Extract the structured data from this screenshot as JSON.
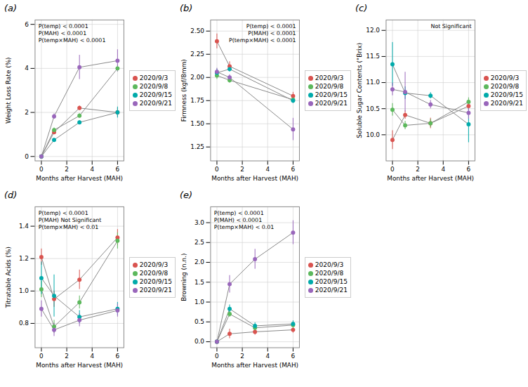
{
  "chart_data": [
    {
      "type": "line",
      "title": "(a)",
      "xlabel": "Months after Harvest (MAH)",
      "ylabel": "Weight Loss Rate (%)",
      "annotation": "P(temp) < 0.0001\nP(MAH) < 0.0001\nP(temp×MAH) < 0.0001",
      "x": [
        0,
        1,
        3,
        6
      ],
      "xlim": [
        -0.5,
        6.5
      ],
      "xticks": [
        0,
        2,
        4,
        6
      ],
      "ylim": [
        -0.2,
        6.2
      ],
      "yticks": [
        0,
        2,
        4,
        6
      ],
      "grid": true,
      "legend": "right",
      "marker": "circle",
      "series": [
        {
          "name": "2020/9/3",
          "color": "#d9534f",
          "values": [
            0.0,
            1.1,
            2.2,
            2.0
          ],
          "yerr": [
            0.02,
            0.08,
            0.1,
            0.2
          ]
        },
        {
          "name": "2020/9/8",
          "color": "#5cb85c",
          "values": [
            0.0,
            1.2,
            1.85,
            4.0
          ],
          "yerr": [
            0.02,
            0.1,
            0.1,
            0.15
          ]
        },
        {
          "name": "2020/9/15",
          "color": "#00aaaa",
          "values": [
            0.0,
            0.75,
            1.55,
            2.0
          ],
          "yerr": [
            0.02,
            0.06,
            0.08,
            0.25
          ]
        },
        {
          "name": "2020/9/21",
          "color": "#9966bb",
          "values": [
            0.0,
            1.82,
            4.05,
            4.35
          ],
          "yerr": [
            0.02,
            0.12,
            0.55,
            0.5
          ]
        }
      ]
    },
    {
      "type": "line",
      "title": "(b)",
      "xlabel": "Months after Harvest (MAH)",
      "ylabel": "Firmness (kgf/8mm)",
      "annotation": "P(temp) < 0.0001\nP(MAH) < 0.0001\nP(temp×MAH) < 0.0001",
      "x": [
        0,
        1,
        6
      ],
      "xlim": [
        -0.5,
        6.5
      ],
      "xticks": [
        0,
        2,
        4,
        6
      ],
      "ylim": [
        1.1,
        2.62
      ],
      "yticks": [
        1.25,
        {
          "value": 1.5,
          "label": "1.50"
        },
        1.75,
        {
          "value": 2,
          "label": "2.00"
        },
        2.25,
        {
          "value": 2.5,
          "label": "2.50"
        }
      ],
      "grid": true,
      "legend": "right",
      "marker": "circle",
      "series": [
        {
          "name": "2020/9/3",
          "color": "#d9534f",
          "values": [
            2.39,
            2.12,
            1.8
          ],
          "yerr": [
            0.08,
            0.05,
            0.04
          ]
        },
        {
          "name": "2020/9/8",
          "color": "#5cb85c",
          "values": [
            2.02,
            1.97,
            1.76
          ],
          "yerr": [
            0.04,
            0.03,
            0.03
          ]
        },
        {
          "name": "2020/9/15",
          "color": "#00aaaa",
          "values": [
            2.05,
            2.09,
            1.75
          ],
          "yerr": [
            0.04,
            0.03,
            0.03
          ]
        },
        {
          "name": "2020/9/21",
          "color": "#9966bb",
          "values": [
            2.06,
            2.0,
            1.44
          ],
          "yerr": [
            0.04,
            0.03,
            0.12
          ]
        }
      ]
    },
    {
      "type": "line",
      "title": "(c)",
      "xlabel": "Months after Harvest (MAH)",
      "ylabel": "Soluble Sugar Contents (°Brix)",
      "annotation": "Not Significant",
      "x": [
        0,
        1,
        3,
        6
      ],
      "xlim": [
        -0.5,
        6.5
      ],
      "xticks": [
        0,
        2,
        4,
        6
      ],
      "ylim": [
        9.5,
        12.2
      ],
      "yticks": [
        {
          "value": 10,
          "label": "10.0"
        },
        10.5,
        {
          "value": 11,
          "label": "11.0"
        },
        11.5,
        {
          "value": 12,
          "label": "12.0"
        }
      ],
      "grid": true,
      "legend": "right",
      "marker": "circle",
      "series": [
        {
          "name": "2020/9/3",
          "color": "#d9534f",
          "values": [
            9.9,
            10.38,
            10.22,
            10.55
          ],
          "yerr": [
            0.18,
            0.08,
            0.1,
            0.08
          ]
        },
        {
          "name": "2020/9/8",
          "color": "#5cb85c",
          "values": [
            10.48,
            10.18,
            10.22,
            10.63
          ],
          "yerr": [
            0.12,
            0.08,
            0.08,
            0.08
          ]
        },
        {
          "name": "2020/9/15",
          "color": "#00aaaa",
          "values": [
            11.35,
            10.8,
            10.75,
            10.2
          ],
          "yerr": [
            0.42,
            0.12,
            0.06,
            0.35
          ]
        },
        {
          "name": "2020/9/21",
          "color": "#9966bb",
          "values": [
            10.87,
            10.82,
            10.58,
            10.42
          ],
          "yerr": [
            0.12,
            0.38,
            0.08,
            0.12
          ]
        }
      ]
    },
    {
      "type": "line",
      "title": "(d)",
      "xlabel": "Months after Harvest (MAH)",
      "ylabel": "Titratable Acids (%)",
      "annotation": "P(temp) < 0.0001\nP(MAH) Not Significant\nP(temp×MAH) < 0.01",
      "x": [
        0,
        1,
        3,
        6
      ],
      "xlim": [
        -0.5,
        6.5
      ],
      "xticks": [
        0,
        2,
        4,
        6
      ],
      "ylim": [
        0.65,
        1.52
      ],
      "yticks": [
        0.8,
        {
          "value": 1,
          "label": "1.0"
        },
        1.2,
        1.4
      ],
      "grid": true,
      "legend": "right",
      "marker": "circle",
      "series": [
        {
          "name": "2020/9/3",
          "color": "#d9534f",
          "values": [
            1.21,
            0.95,
            1.07,
            1.33
          ],
          "yerr": [
            0.05,
            0.05,
            0.06,
            0.05
          ]
        },
        {
          "name": "2020/9/8",
          "color": "#5cb85c",
          "values": [
            1.01,
            0.78,
            0.93,
            1.31
          ],
          "yerr": [
            0.05,
            0.04,
            0.04,
            0.05
          ]
        },
        {
          "name": "2020/9/15",
          "color": "#00aaaa",
          "values": [
            1.08,
            0.97,
            0.84,
            0.89
          ],
          "yerr": [
            0.1,
            0.13,
            0.04,
            0.04
          ]
        },
        {
          "name": "2020/9/21",
          "color": "#9966bb",
          "values": [
            0.89,
            0.76,
            0.82,
            0.88
          ],
          "yerr": [
            0.05,
            0.04,
            0.04,
            0.04
          ]
        }
      ]
    },
    {
      "type": "line",
      "title": "(e)",
      "xlabel": "Months after Harvest (MAH)",
      "ylabel": "Browning (n.n.)",
      "annotation": "P(temp) < 0.0001\nP(MAH) < 0.0001\nP(temp×MAH) < 0.01",
      "x": [
        0,
        1,
        3,
        6
      ],
      "xlim": [
        -0.5,
        6.5
      ],
      "xticks": [
        0,
        2,
        4,
        6
      ],
      "ylim": [
        -0.15,
        3.4
      ],
      "yticks": [
        {
          "value": 0,
          "label": "0.0"
        },
        0.5,
        {
          "value": 1,
          "label": "1.0"
        },
        1.5,
        {
          "value": 2,
          "label": "2.0"
        },
        2.5,
        {
          "value": 3,
          "label": "3.0"
        }
      ],
      "grid": true,
      "legend": "right",
      "marker": "circle",
      "series": [
        {
          "name": "2020/9/3",
          "color": "#d9534f",
          "values": [
            0.0,
            0.2,
            0.25,
            0.3
          ],
          "yerr": [
            0.0,
            0.12,
            0.08,
            0.08
          ]
        },
        {
          "name": "2020/9/8",
          "color": "#5cb85c",
          "values": [
            0.0,
            0.7,
            0.35,
            0.42
          ],
          "yerr": [
            0.0,
            0.08,
            0.08,
            0.08
          ]
        },
        {
          "name": "2020/9/15",
          "color": "#00aaaa",
          "values": [
            0.0,
            0.83,
            0.4,
            0.45
          ],
          "yerr": [
            0.0,
            0.1,
            0.08,
            0.08
          ]
        },
        {
          "name": "2020/9/21",
          "color": "#9966bb",
          "values": [
            0.0,
            1.45,
            2.08,
            2.75
          ],
          "yerr": [
            0.0,
            0.22,
            0.25,
            0.3
          ]
        }
      ]
    }
  ]
}
